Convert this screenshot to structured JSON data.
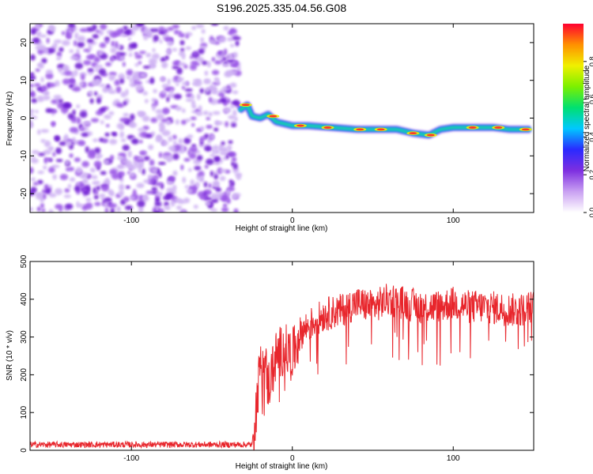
{
  "title": "S196.2025.335.04.56.G08",
  "colors": {
    "snr_line": "#e8262c",
    "spectrogram_low": "#b98cf0",
    "spectrogram_mid": "#7a1ed8",
    "colormap": [
      "#ffffff",
      "#c9a0f2",
      "#7e2fe0",
      "#2a2aff",
      "#00c8ff",
      "#00e070",
      "#7cf000",
      "#f0f000",
      "#ff9000",
      "#ff0030"
    ]
  },
  "chart_data": [
    {
      "type": "heatmap",
      "title": "S196.2025.335.04.56.G08",
      "xlabel": "Height of straight line (km)",
      "ylabel": "Frequency (Hz)",
      "xlim": [
        -163,
        150
      ],
      "ylim": [
        -25,
        25
      ],
      "x_ticks": [
        -100,
        0,
        100
      ],
      "y_ticks": [
        -20,
        -10,
        0,
        10,
        20
      ],
      "colorbar": {
        "label": "Normalized spectral amplitude",
        "range": [
          0,
          1
        ],
        "ticks": [
          0.0,
          0.2,
          0.4,
          0.6,
          0.8
        ]
      },
      "noise_region_x": [
        -163,
        -33
      ],
      "ridge": [
        {
          "x": -33,
          "y": 2
        },
        {
          "x": -28,
          "y": 3.5
        },
        {
          "x": -25,
          "y": 0.5
        },
        {
          "x": -20,
          "y": 0
        },
        {
          "x": -15,
          "y": 1
        },
        {
          "x": -10,
          "y": -1
        },
        {
          "x": -5,
          "y": -1.5
        },
        {
          "x": 0,
          "y": -2
        },
        {
          "x": 10,
          "y": -2
        },
        {
          "x": 25,
          "y": -2.5
        },
        {
          "x": 40,
          "y": -3
        },
        {
          "x": 55,
          "y": -3
        },
        {
          "x": 65,
          "y": -3
        },
        {
          "x": 75,
          "y": -4
        },
        {
          "x": 85,
          "y": -4.5
        },
        {
          "x": 92,
          "y": -3
        },
        {
          "x": 100,
          "y": -2.5
        },
        {
          "x": 110,
          "y": -2.5
        },
        {
          "x": 125,
          "y": -2.5
        },
        {
          "x": 135,
          "y": -3
        },
        {
          "x": 148,
          "y": -3
        }
      ]
    },
    {
      "type": "line",
      "xlabel": "Height of straight line (km)",
      "ylabel": "SNR (10 * v/v)",
      "xlim": [
        -163,
        150
      ],
      "ylim": [
        0,
        500
      ],
      "x_ticks": [
        -100,
        0,
        100
      ],
      "y_ticks": [
        0,
        100,
        200,
        300,
        400,
        500
      ],
      "series": [
        {
          "x": [
            -163,
            -140,
            -120,
            -100,
            -80,
            -60,
            -40,
            -25,
            -22,
            -20,
            -18,
            -15,
            -10,
            -5,
            0,
            5,
            10,
            20,
            30,
            40,
            50,
            60,
            70,
            80,
            90,
            100,
            110,
            120,
            130,
            140,
            150
          ],
          "values": [
            15,
            15,
            15,
            15,
            15,
            15,
            15,
            15,
            130,
            230,
            260,
            170,
            250,
            270,
            250,
            310,
            330,
            360,
            370,
            390,
            380,
            400,
            390,
            380,
            380,
            390,
            380,
            380,
            375,
            370,
            380
          ]
        }
      ]
    }
  ]
}
